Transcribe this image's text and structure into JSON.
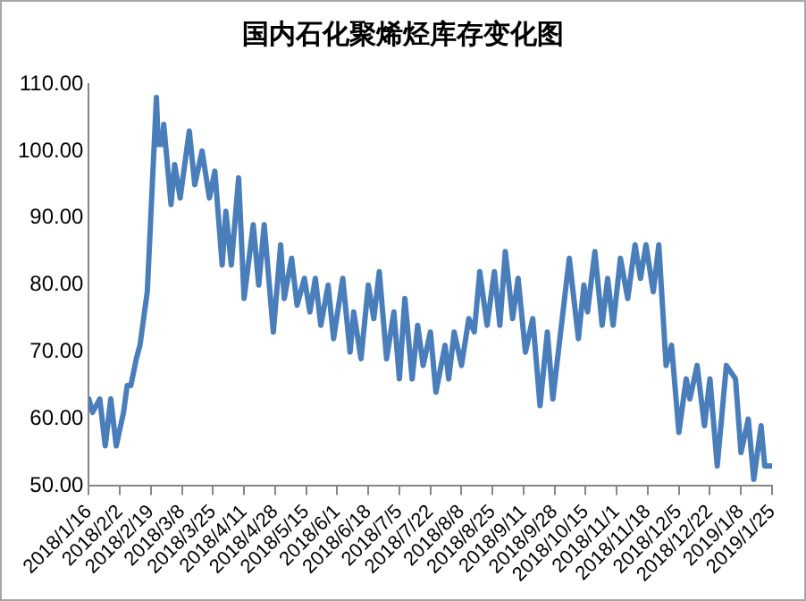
{
  "chart_data": {
    "type": "line",
    "title": "国内石化聚烯烃库存变化图",
    "x": [
      "2018-01-16",
      "2018-01-18",
      "2018-01-22",
      "2018-01-25",
      "2018-01-28",
      "2018-01-31",
      "2018-02-04",
      "2018-02-06",
      "2018-02-08",
      "2018-02-11",
      "2018-02-13",
      "2018-02-17",
      "2018-02-22",
      "2018-02-23",
      "2018-02-25",
      "2018-02-26",
      "2018-03-02",
      "2018-03-04",
      "2018-03-07",
      "2018-03-12",
      "2018-03-15",
      "2018-03-19",
      "2018-03-23",
      "2018-03-26",
      "2018-03-30",
      "2018-04-01",
      "2018-04-04",
      "2018-04-08",
      "2018-04-11",
      "2018-04-16",
      "2018-04-19",
      "2018-04-22",
      "2018-04-27",
      "2018-05-01",
      "2018-05-03",
      "2018-05-07",
      "2018-05-10",
      "2018-05-14",
      "2018-05-17",
      "2018-05-20",
      "2018-05-23",
      "2018-05-27",
      "2018-05-30",
      "2018-06-04",
      "2018-06-08",
      "2018-06-10",
      "2018-06-14",
      "2018-06-18",
      "2018-06-21",
      "2018-06-24",
      "2018-06-28",
      "2018-07-02",
      "2018-07-05",
      "2018-07-08",
      "2018-07-12",
      "2018-07-15",
      "2018-07-18",
      "2018-07-22",
      "2018-07-25",
      "2018-07-30",
      "2018-08-01",
      "2018-08-04",
      "2018-08-08",
      "2018-08-12",
      "2018-08-15",
      "2018-08-18",
      "2018-08-22",
      "2018-08-26",
      "2018-08-29",
      "2018-09-01",
      "2018-09-05",
      "2018-09-08",
      "2018-09-12",
      "2018-09-16",
      "2018-09-20",
      "2018-09-24",
      "2018-09-27",
      "2018-10-06",
      "2018-10-11",
      "2018-10-14",
      "2018-10-16",
      "2018-10-20",
      "2018-10-24",
      "2018-10-27",
      "2018-10-30",
      "2018-11-03",
      "2018-11-07",
      "2018-11-11",
      "2018-11-14",
      "2018-11-17",
      "2018-11-21",
      "2018-11-24",
      "2018-11-28",
      "2018-12-01",
      "2018-12-05",
      "2018-12-09",
      "2018-12-11",
      "2018-12-15",
      "2018-12-19",
      "2018-12-22",
      "2018-12-26",
      "2018-12-31",
      "2019-01-05",
      "2019-01-08",
      "2019-01-12",
      "2019-01-15",
      "2019-01-19",
      "2019-01-21",
      "2019-01-25"
    ],
    "series": [
      {
        "color": "#4a7ebb",
        "values": [
          63,
          61,
          63,
          56,
          63,
          56,
          61,
          65,
          65,
          69,
          71,
          79,
          108,
          101,
          101,
          104,
          92,
          98,
          93,
          103,
          95,
          100,
          93,
          97,
          83,
          91,
          83,
          96,
          78,
          89,
          80,
          89,
          73,
          86,
          78,
          84,
          77,
          81,
          76,
          81,
          74,
          80,
          72,
          81,
          70,
          76,
          69,
          80,
          75,
          82,
          69,
          76,
          66,
          78,
          66,
          74,
          68,
          73,
          64,
          71,
          66,
          73,
          68,
          75,
          73,
          82,
          74,
          82,
          74,
          85,
          75,
          81,
          70,
          75,
          62,
          73,
          63,
          84,
          72,
          80,
          76,
          85,
          74,
          81,
          74,
          84,
          78,
          86,
          81,
          86,
          79,
          86,
          68,
          71,
          58,
          66,
          63,
          68,
          59,
          66,
          53,
          68,
          66,
          55,
          60,
          51,
          59,
          53,
          53
        ]
      }
    ],
    "xlim": [
      "2018-01-16",
      "2019-01-25"
    ],
    "xticks": [
      {
        "value": "2018-01-16",
        "label": "2018/1/16"
      },
      {
        "value": "2018-02-02",
        "label": "2018/2/2"
      },
      {
        "value": "2018-02-19",
        "label": "2018/2/19"
      },
      {
        "value": "2018-03-08",
        "label": "2018/3/8"
      },
      {
        "value": "2018-03-25",
        "label": "2018/3/25"
      },
      {
        "value": "2018-04-11",
        "label": "2018/4/11"
      },
      {
        "value": "2018-04-28",
        "label": "2018/4/28"
      },
      {
        "value": "2018-05-15",
        "label": "2018/5/15"
      },
      {
        "value": "2018-06-01",
        "label": "2018/6/1"
      },
      {
        "value": "2018-06-18",
        "label": "2018/6/18"
      },
      {
        "value": "2018-07-05",
        "label": "2018/7/5"
      },
      {
        "value": "2018-07-22",
        "label": "2018/7/22"
      },
      {
        "value": "2018-08-08",
        "label": "2018/8/8"
      },
      {
        "value": "2018-08-25",
        "label": "2018/8/25"
      },
      {
        "value": "2018-09-11",
        "label": "2018/9/11"
      },
      {
        "value": "2018-09-28",
        "label": "2018/9/28"
      },
      {
        "value": "2018-10-15",
        "label": "2018/10/15"
      },
      {
        "value": "2018-11-01",
        "label": "2018/11/1"
      },
      {
        "value": "2018-11-18",
        "label": "2018/11/18"
      },
      {
        "value": "2018-12-05",
        "label": "2018/12/5"
      },
      {
        "value": "2018-12-22",
        "label": "2018/12/22"
      },
      {
        "value": "2019-01-08",
        "label": "2019/1/8"
      },
      {
        "value": "2019-01-25",
        "label": "2019/1/25"
      }
    ],
    "ylim": [
      50,
      110
    ],
    "yticks": [
      {
        "value": 50,
        "label": "50.00"
      },
      {
        "value": 60,
        "label": "60.00"
      },
      {
        "value": 70,
        "label": "70.00"
      },
      {
        "value": 80,
        "label": "80.00"
      },
      {
        "value": 90,
        "label": "90.00"
      },
      {
        "value": 100,
        "label": "100.00"
      },
      {
        "value": 110,
        "label": "110.00"
      }
    ],
    "grid": false,
    "legend": false,
    "marker": "none",
    "line_style": "solid"
  }
}
